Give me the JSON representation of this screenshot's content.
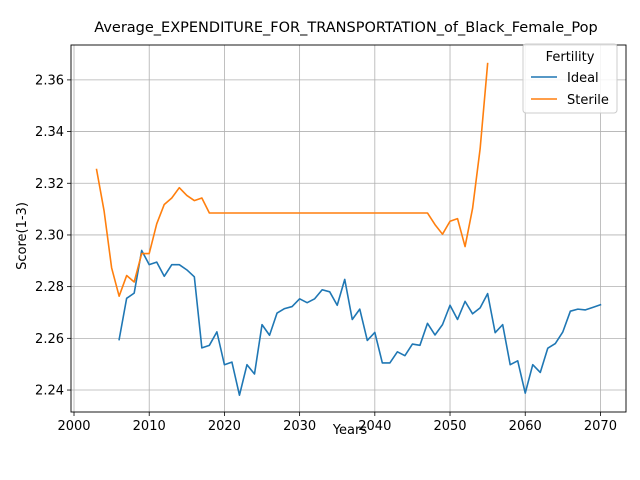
{
  "chart_data": {
    "type": "line",
    "title": "Average_EXPENDITURE_FOR_TRANSPORTATION_of_Black_Female_Pop",
    "xlabel": "Years",
    "ylabel": "Score(1-3)",
    "xlim": [
      1999.6,
      2073.4
    ],
    "ylim": [
      2.2315,
      2.3735
    ],
    "xticks": [
      2000,
      2010,
      2020,
      2030,
      2040,
      2050,
      2060,
      2070
    ],
    "yticks": [
      2.24,
      2.26,
      2.28,
      2.3,
      2.32,
      2.34,
      2.36
    ],
    "ytick_labels": [
      "2.24",
      "2.26",
      "2.28",
      "2.30",
      "2.32",
      "2.34",
      "2.36"
    ],
    "grid": true,
    "legend": {
      "title": "Fertility",
      "placement": "top-right"
    },
    "series": [
      {
        "name": "Ideal",
        "color": "#1f77b4",
        "x": [
          2006,
          2007,
          2008,
          2009,
          2010,
          2011,
          2012,
          2013,
          2014,
          2015,
          2016,
          2017,
          2018,
          2019,
          2020,
          2021,
          2022,
          2023,
          2024,
          2025,
          2026,
          2027,
          2028,
          2029,
          2030,
          2031,
          2032,
          2033,
          2034,
          2035,
          2036,
          2037,
          2038,
          2039,
          2040,
          2041,
          2042,
          2043,
          2044,
          2045,
          2046,
          2047,
          2048,
          2049,
          2050,
          2051,
          2052,
          2053,
          2054,
          2055,
          2056,
          2057,
          2058,
          2059,
          2060,
          2061,
          2062,
          2063,
          2064,
          2065,
          2066,
          2067,
          2068,
          2069,
          2070
        ],
        "y": [
          2.2595,
          2.2755,
          2.2775,
          2.294,
          2.2885,
          2.2895,
          2.284,
          2.2885,
          2.2885,
          2.2865,
          2.2838,
          2.2563,
          2.2573,
          2.2625,
          2.2498,
          2.2508,
          2.238,
          2.2498,
          2.2462,
          2.2653,
          2.2612,
          2.2698,
          2.2715,
          2.2723,
          2.2753,
          2.2738,
          2.2753,
          2.2788,
          2.278,
          2.2728,
          2.2828,
          2.2673,
          2.2713,
          2.2592,
          2.2623,
          2.2505,
          2.2505,
          2.2548,
          2.2533,
          2.2578,
          2.2573,
          2.2658,
          2.2613,
          2.2653,
          2.2728,
          2.2673,
          2.2743,
          2.2695,
          2.2718,
          2.2773,
          2.2622,
          2.2653,
          2.2498,
          2.2513,
          2.2388,
          2.2498,
          2.2468,
          2.2562,
          2.258,
          2.2625,
          2.2705,
          2.2713,
          2.271,
          2.272,
          2.273
        ]
      },
      {
        "name": "Sterile",
        "color": "#ff7f0e",
        "x": [
          2003,
          2004,
          2005,
          2006,
          2007,
          2008,
          2009,
          2010,
          2011,
          2012,
          2013,
          2014,
          2015,
          2016,
          2017,
          2018,
          2019,
          2020,
          2025,
          2030,
          2035,
          2040,
          2045,
          2047,
          2048,
          2049,
          2050,
          2051,
          2052,
          2053,
          2054,
          2055
        ],
        "y": [
          2.3253,
          2.3093,
          2.2873,
          2.2763,
          2.2843,
          2.2818,
          2.2928,
          2.2928,
          2.3043,
          2.3118,
          2.3143,
          2.3183,
          2.3153,
          2.3133,
          2.3143,
          2.3085,
          2.3085,
          2.3085,
          2.3085,
          2.3085,
          2.3085,
          2.3085,
          2.3085,
          2.3085,
          2.304,
          2.3003,
          2.3053,
          2.3063,
          2.2955,
          2.3103,
          2.3333,
          2.3663
        ]
      }
    ]
  }
}
